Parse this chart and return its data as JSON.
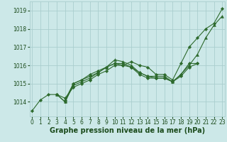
{
  "series": [
    {
      "x": [
        0,
        1,
        2,
        3,
        4,
        5,
        6,
        7,
        8,
        9,
        10,
        11,
        12,
        13,
        14,
        15,
        16,
        17,
        18,
        19,
        20,
        21,
        22,
        23
      ],
      "y": [
        1013.5,
        1014.1,
        1014.4,
        1014.4,
        1014.2,
        1014.8,
        1015.0,
        1015.2,
        1015.5,
        1015.7,
        1016.0,
        1016.0,
        1016.2,
        1016.0,
        1015.9,
        1015.5,
        1015.5,
        1015.2,
        1016.1,
        1017.0,
        1017.5,
        1018.0,
        1018.3,
        1019.1
      ],
      "marker": "D"
    },
    {
      "x": [
        3,
        4,
        5,
        6,
        7,
        8,
        9,
        10,
        11,
        12,
        13,
        14,
        15,
        16,
        17,
        18,
        19,
        20,
        21,
        22,
        23
      ],
      "y": [
        1014.4,
        1014.0,
        1014.9,
        1015.1,
        1015.3,
        1015.6,
        1015.9,
        1016.3,
        1016.2,
        1016.0,
        1015.6,
        1015.4,
        1015.4,
        1015.4,
        1015.1,
        1015.5,
        1016.0,
        1016.6,
        1017.5,
        1018.2,
        1018.7
      ],
      "marker": "^"
    },
    {
      "x": [
        3,
        4,
        5,
        6,
        7,
        8,
        9,
        10,
        11,
        12,
        13,
        14,
        15,
        16,
        17,
        18,
        19,
        20
      ],
      "y": [
        1014.4,
        1014.0,
        1015.0,
        1015.2,
        1015.4,
        1015.6,
        1015.9,
        1016.1,
        1016.0,
        1015.9,
        1015.5,
        1015.3,
        1015.3,
        1015.3,
        1015.1,
        1015.5,
        1016.1,
        1016.1
      ],
      "marker": "D"
    },
    {
      "x": [
        4,
        5,
        6,
        7,
        8,
        9,
        10,
        11,
        12,
        13,
        14,
        15,
        16,
        17,
        18,
        19,
        20
      ],
      "y": [
        1014.1,
        1015.0,
        1015.2,
        1015.5,
        1015.7,
        1015.9,
        1016.1,
        1016.1,
        1015.9,
        1015.6,
        1015.4,
        1015.3,
        1015.3,
        1015.1,
        1015.4,
        1015.9,
        1016.1
      ],
      "marker": "D"
    }
  ],
  "line_color": "#2d6a2d",
  "bg_color": "#cce8e8",
  "grid_color": "#aacece",
  "xlabel": "Graphe pression niveau de la mer (hPa)",
  "xlabel_color": "#1a4a1a",
  "xlabel_fontsize": 7.0,
  "tick_fontsize": 5.5,
  "yticks": [
    1014,
    1015,
    1016,
    1017,
    1018,
    1019
  ],
  "xticks": [
    0,
    1,
    2,
    3,
    4,
    5,
    6,
    7,
    8,
    9,
    10,
    11,
    12,
    13,
    14,
    15,
    16,
    17,
    18,
    19,
    20,
    21,
    22,
    23
  ],
  "ylim": [
    1013.2,
    1019.5
  ],
  "xlim": [
    -0.3,
    23.3
  ]
}
